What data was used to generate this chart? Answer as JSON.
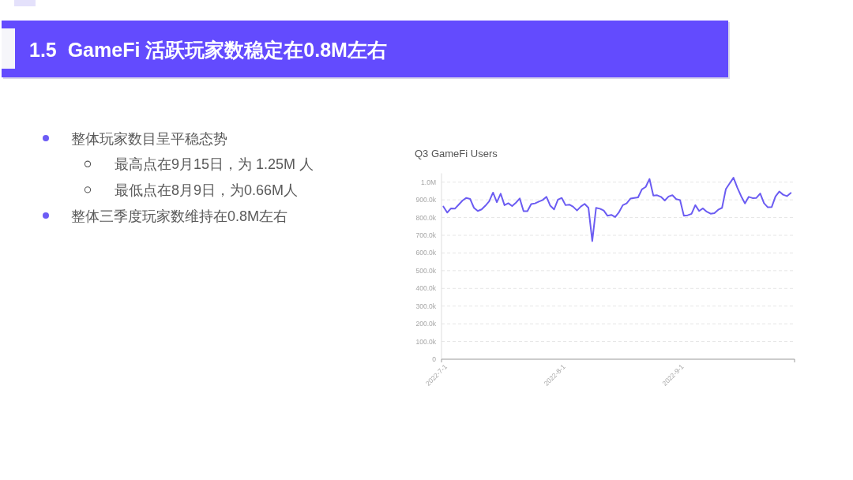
{
  "chart_data": {
    "type": "line",
    "title": "1.5  GameFi 活跃玩家数稳定在0.8M左右",
    "subtitle": "Q3 GameFi Users",
    "annotations": [
      "整体玩家数目呈平稳态势",
      "最高点在9月15日，为 1.25M 人",
      "最低点在8月9日，为0.66M人",
      "整体三季度玩家数维持在0.8M左右"
    ],
    "x": [
      "2022-07-01",
      "2022-07-02",
      "2022-07-03",
      "2022-07-04",
      "2022-07-05",
      "2022-07-06",
      "2022-07-07",
      "2022-07-08",
      "2022-07-09",
      "2022-07-10",
      "2022-07-11",
      "2022-07-12",
      "2022-07-13",
      "2022-07-14",
      "2022-07-15",
      "2022-07-16",
      "2022-07-17",
      "2022-07-18",
      "2022-07-19",
      "2022-07-20",
      "2022-07-21",
      "2022-07-22",
      "2022-07-23",
      "2022-07-24",
      "2022-07-25",
      "2022-07-26",
      "2022-07-27",
      "2022-07-28",
      "2022-07-29",
      "2022-07-30",
      "2022-07-31",
      "2022-08-01",
      "2022-08-02",
      "2022-08-03",
      "2022-08-04",
      "2022-08-05",
      "2022-08-06",
      "2022-08-07",
      "2022-08-08",
      "2022-08-09",
      "2022-08-10",
      "2022-08-11",
      "2022-08-12",
      "2022-08-13",
      "2022-08-14",
      "2022-08-15",
      "2022-08-16",
      "2022-08-17",
      "2022-08-18",
      "2022-08-19",
      "2022-08-20",
      "2022-08-21",
      "2022-08-22",
      "2022-08-23",
      "2022-08-24",
      "2022-08-25",
      "2022-08-26",
      "2022-08-27",
      "2022-08-28",
      "2022-08-29",
      "2022-08-30",
      "2022-08-31",
      "2022-09-01",
      "2022-09-02",
      "2022-09-03",
      "2022-09-04",
      "2022-09-05",
      "2022-09-06",
      "2022-09-07",
      "2022-09-08",
      "2022-09-09",
      "2022-09-10",
      "2022-09-11",
      "2022-09-12",
      "2022-09-13",
      "2022-09-14",
      "2022-09-15",
      "2022-09-16",
      "2022-09-17",
      "2022-09-18",
      "2022-09-19",
      "2022-09-20",
      "2022-09-21",
      "2022-09-22",
      "2022-09-23",
      "2022-09-24",
      "2022-09-25",
      "2022-09-26",
      "2022-09-27",
      "2022-09-28",
      "2022-09-29",
      "2022-09-30"
    ],
    "series": [
      {
        "color": "#6b5cf2",
        "values": [
          862000,
          828000,
          852000,
          850000,
          873000,
          896000,
          911000,
          905000,
          855000,
          837000,
          846000,
          867000,
          892000,
          941000,
          887000,
          935000,
          870000,
          881000,
          865000,
          884000,
          908000,
          836000,
          836000,
          876000,
          880000,
          890000,
          899000,
          917000,
          867000,
          846000,
          901000,
          911000,
          870000,
          873000,
          861000,
          840000,
          862000,
          877000,
          855000,
          667000,
          855000,
          850000,
          840000,
          810000,
          815000,
          803000,
          830000,
          870000,
          880000,
          907000,
          911000,
          914000,
          959000,
          973000,
          1018000,
          924000,
          926000,
          917000,
          896000,
          919000,
          926000,
          904000,
          899000,
          810000,
          813000,
          821000,
          870000,
          837000,
          852000,
          833000,
          822000,
          825000,
          844000,
          855000,
          961000,
          993000,
          1025000,
          969000,
          921000,
          880000,
          917000,
          910000,
          911000,
          936000,
          881000,
          858000,
          859000,
          919000,
          947000,
          929000,
          921000,
          939000
        ]
      }
    ],
    "xlim": [
      "2022-06-30T12:00",
      "2022-10-01"
    ],
    "xticks": [
      {
        "value": "2022-07-01",
        "label": "2022-7-1"
      },
      {
        "value": "2022-08-01",
        "label": "2022-8-1"
      },
      {
        "value": "2022-09-01",
        "label": "2022-9-1"
      }
    ],
    "ylim": [
      0,
      1050000
    ],
    "yticks": [
      0,
      {
        "value": 100000,
        "label": "100.0k"
      },
      {
        "value": 200000,
        "label": "200.0k"
      },
      {
        "value": 300000,
        "label": "300.0k"
      },
      {
        "value": 400000,
        "label": "400.0k"
      },
      {
        "value": 500000,
        "label": "500.0k"
      },
      {
        "value": 600000,
        "label": "600.0k"
      },
      {
        "value": 700000,
        "label": "700.0k"
      },
      {
        "value": 800000,
        "label": "800.0k"
      },
      {
        "value": 900000,
        "label": "900.0k"
      },
      {
        "value": 1000000,
        "label": "1.0M"
      }
    ],
    "grid": "y"
  }
}
